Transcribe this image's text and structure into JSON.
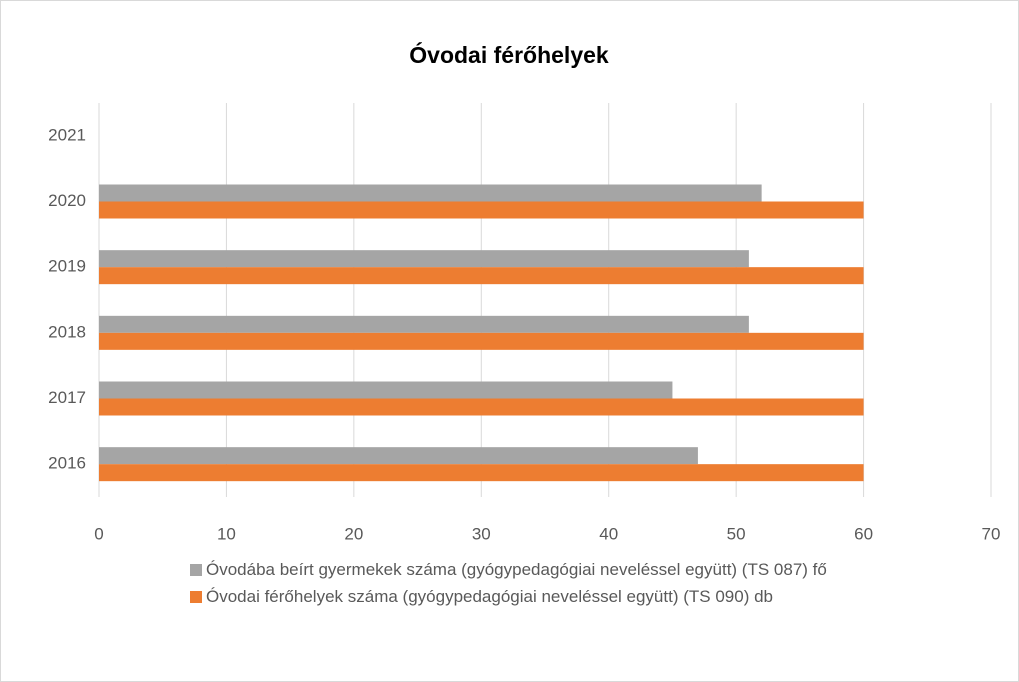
{
  "chart_data": {
    "type": "hbar",
    "title": "Óvodai férőhelyek",
    "categories": [
      "2016",
      "2017",
      "2018",
      "2019",
      "2020",
      "2021"
    ],
    "series": [
      {
        "name": "Óvodába beírt gyermekek száma (gyógypedagógiai neveléssel együtt) (TS 087) fő",
        "color": "#a5a5a5",
        "values": [
          47,
          45,
          51,
          51,
          52,
          null
        ]
      },
      {
        "name": "Óvodai férőhelyek száma (gyógypedagógiai neveléssel együtt) (TS 090) db",
        "color": "#ed7d31",
        "values": [
          60,
          60,
          60,
          60,
          60,
          null
        ]
      }
    ],
    "xlim": [
      0,
      70
    ],
    "xticks": [
      0,
      10,
      20,
      30,
      40,
      50,
      60,
      70
    ],
    "grid": true
  }
}
